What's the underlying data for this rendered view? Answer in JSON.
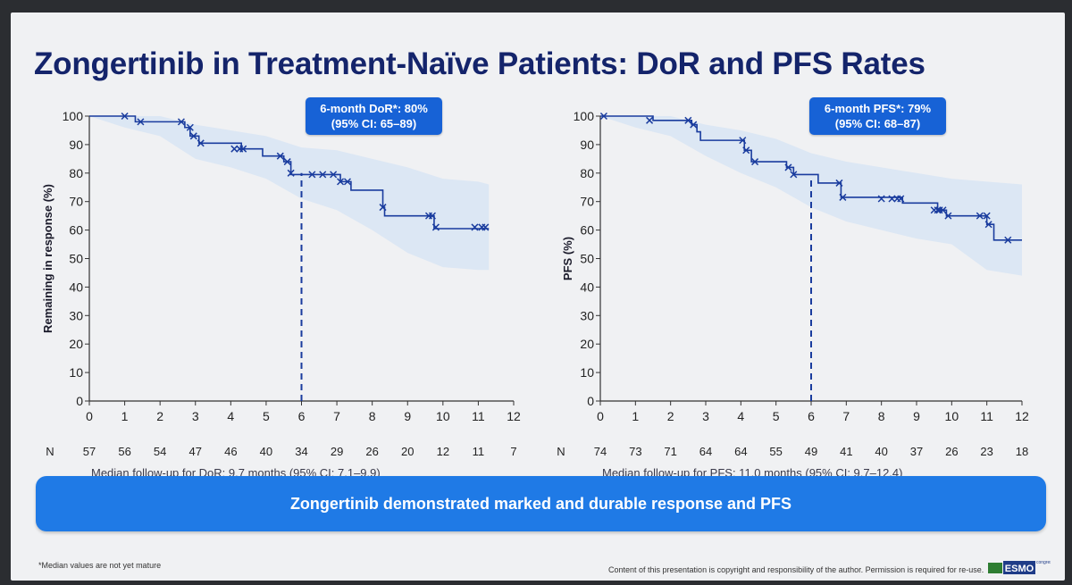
{
  "slide": {
    "title": "Zongertinib in Treatment-Naïve Patients: DoR and PFS Rates",
    "banner": "Zongertinib demonstrated marked and durable response and PFS",
    "footnote": "*Median values are not yet mature",
    "copyright": "Content of this presentation is copyright and responsibility of the author. Permission is required for re-use.",
    "logo": {
      "brand": "ESMO",
      "super": "congress"
    }
  },
  "colors": {
    "curve": "#1a3c9e",
    "ci_band": "#d9e6f4",
    "annotation_bg": "#1762d6",
    "banner_bg": "#1f7ae6",
    "title": "#14246b"
  },
  "chart_data": [
    {
      "type": "line",
      "style": "kaplan-meier",
      "ylabel": "Remaining in response (%)",
      "xlim": [
        0,
        12
      ],
      "ylim": [
        0,
        100
      ],
      "x_ticks": [
        0,
        1,
        2,
        3,
        4,
        5,
        6,
        7,
        8,
        9,
        10,
        11,
        12
      ],
      "y_ticks": [
        0,
        10,
        20,
        30,
        40,
        50,
        60,
        70,
        80,
        90,
        100
      ],
      "n_label": "N",
      "at_risk": [
        57,
        56,
        54,
        47,
        46,
        40,
        34,
        29,
        26,
        20,
        12,
        11,
        7
      ],
      "annotation": {
        "line1": "6-month DoR*: 80%",
        "line2": "(95% CI: 65–89)",
        "x": 6,
        "y": 80
      },
      "followup": "Median follow-up for DoR: 9.7 months (95% CI: 7.1–9.9)",
      "steps": [
        [
          0,
          100
        ],
        [
          1.3,
          98
        ],
        [
          2.7,
          96
        ],
        [
          2.85,
          93
        ],
        [
          3.1,
          90.5
        ],
        [
          4.3,
          88.5
        ],
        [
          4.9,
          86
        ],
        [
          5.5,
          84
        ],
        [
          5.7,
          79.5
        ],
        [
          7.1,
          77
        ],
        [
          7.4,
          74
        ],
        [
          8.3,
          68
        ],
        [
          8.35,
          65
        ],
        [
          9.75,
          60.5
        ],
        [
          11.3,
          60.5
        ]
      ],
      "censored": [
        [
          1.0,
          100
        ],
        [
          1.45,
          98
        ],
        [
          2.6,
          98
        ],
        [
          2.85,
          96
        ],
        [
          2.95,
          93
        ],
        [
          3.15,
          90.5
        ],
        [
          4.1,
          88.5
        ],
        [
          4.25,
          88.5
        ],
        [
          4.35,
          88.5
        ],
        [
          5.4,
          86
        ],
        [
          5.6,
          84
        ],
        [
          5.7,
          80
        ],
        [
          6.3,
          79.5
        ],
        [
          6.6,
          79.5
        ],
        [
          6.9,
          79.5
        ],
        [
          7.1,
          77
        ],
        [
          7.3,
          77
        ],
        [
          8.3,
          68
        ],
        [
          9.6,
          65
        ],
        [
          9.7,
          65
        ],
        [
          9.8,
          61
        ],
        [
          10.9,
          61
        ],
        [
          11.1,
          61
        ],
        [
          11.2,
          61
        ]
      ],
      "ci_upper": [
        [
          0,
          100
        ],
        [
          2,
          100
        ],
        [
          3,
          97
        ],
        [
          4,
          95
        ],
        [
          5,
          93
        ],
        [
          6,
          89
        ],
        [
          7,
          88
        ],
        [
          8,
          85
        ],
        [
          9,
          82
        ],
        [
          10,
          78
        ],
        [
          11,
          77
        ],
        [
          11.3,
          76
        ]
      ],
      "ci_lower": [
        [
          0,
          100
        ],
        [
          1,
          96
        ],
        [
          2,
          93
        ],
        [
          3,
          85
        ],
        [
          4,
          82
        ],
        [
          5,
          78
        ],
        [
          6,
          71
        ],
        [
          7,
          67
        ],
        [
          8,
          60
        ],
        [
          9,
          52
        ],
        [
          10,
          47
        ],
        [
          11,
          46
        ],
        [
          11.3,
          46
        ]
      ]
    },
    {
      "type": "line",
      "style": "kaplan-meier",
      "ylabel": "PFS (%)",
      "xlim": [
        0,
        12
      ],
      "ylim": [
        0,
        100
      ],
      "x_ticks": [
        0,
        1,
        2,
        3,
        4,
        5,
        6,
        7,
        8,
        9,
        10,
        11,
        12
      ],
      "y_ticks": [
        0,
        10,
        20,
        30,
        40,
        50,
        60,
        70,
        80,
        90,
        100
      ],
      "n_label": "N",
      "at_risk": [
        74,
        73,
        71,
        64,
        64,
        55,
        49,
        41,
        40,
        37,
        26,
        23,
        18
      ],
      "annotation": {
        "line1": "6-month PFS*: 79%",
        "line2": "(95% CI: 68–87)",
        "x": 6,
        "y": 79
      },
      "followup": "Median follow-up for PFS: 11.0 months (95% CI: 9.7–12.4)",
      "steps": [
        [
          0,
          100
        ],
        [
          1.5,
          98.5
        ],
        [
          2.6,
          97
        ],
        [
          2.75,
          94.5
        ],
        [
          2.85,
          91.5
        ],
        [
          4.1,
          88
        ],
        [
          4.3,
          84
        ],
        [
          5.3,
          82
        ],
        [
          5.5,
          79.5
        ],
        [
          6.2,
          76.5
        ],
        [
          6.85,
          71.5
        ],
        [
          8.6,
          69.5
        ],
        [
          9.6,
          67
        ],
        [
          9.85,
          65
        ],
        [
          11.0,
          62
        ],
        [
          11.2,
          56.5
        ],
        [
          12.0,
          56.5
        ]
      ],
      "censored": [
        [
          0.1,
          100
        ],
        [
          1.4,
          98.5
        ],
        [
          2.5,
          98.5
        ],
        [
          2.65,
          97
        ],
        [
          4.05,
          91.5
        ],
        [
          4.15,
          88
        ],
        [
          4.4,
          84
        ],
        [
          5.35,
          82
        ],
        [
          5.5,
          79.5
        ],
        [
          6.8,
          76.5
        ],
        [
          6.9,
          71.5
        ],
        [
          8.0,
          71
        ],
        [
          8.3,
          71
        ],
        [
          8.45,
          71
        ],
        [
          8.55,
          71
        ],
        [
          9.5,
          67
        ],
        [
          9.6,
          67
        ],
        [
          9.65,
          67
        ],
        [
          9.75,
          67
        ],
        [
          9.9,
          65
        ],
        [
          10.8,
          65
        ],
        [
          11.0,
          65
        ],
        [
          11.05,
          62
        ],
        [
          11.6,
          56.5
        ]
      ],
      "ci_upper": [
        [
          0,
          100
        ],
        [
          2,
          100
        ],
        [
          3,
          97
        ],
        [
          4,
          95
        ],
        [
          5,
          92
        ],
        [
          6,
          87
        ],
        [
          7,
          84
        ],
        [
          8,
          82
        ],
        [
          9,
          80
        ],
        [
          10,
          78
        ],
        [
          11,
          77
        ],
        [
          12,
          76
        ]
      ],
      "ci_lower": [
        [
          0,
          100
        ],
        [
          1,
          96
        ],
        [
          2,
          93
        ],
        [
          3,
          86
        ],
        [
          4,
          80
        ],
        [
          5,
          75
        ],
        [
          6,
          68
        ],
        [
          7,
          63
        ],
        [
          8,
          60
        ],
        [
          9,
          57
        ],
        [
          10,
          55
        ],
        [
          11,
          46
        ],
        [
          12,
          44
        ]
      ]
    }
  ]
}
